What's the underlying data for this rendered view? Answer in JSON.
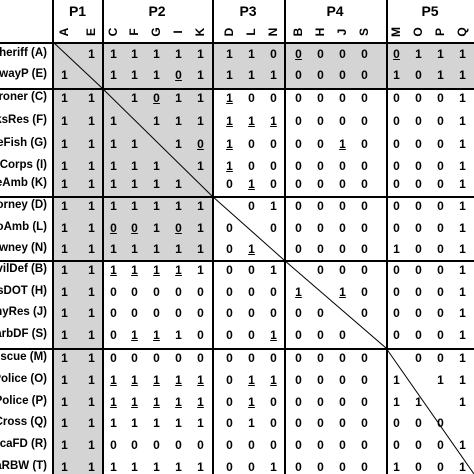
{
  "phases": [
    "P1",
    "P2",
    "P3",
    "P4",
    "P5"
  ],
  "columns": [
    "A",
    "E",
    "C",
    "F",
    "G",
    "I",
    "K",
    "D",
    "L",
    "N",
    "B",
    "H",
    "J",
    "S",
    "M",
    "O",
    "P",
    "Q"
  ],
  "rows": [
    {
      "label": "Sheriff (A)",
      "cells": [
        "",
        "1",
        "1",
        "1",
        "1",
        "1",
        "1",
        "1",
        "1",
        "0",
        "0",
        "0",
        "0",
        "0",
        "0",
        "1",
        "1",
        "1"
      ],
      "underline": [
        0,
        0,
        0,
        0,
        0,
        0,
        0,
        0,
        0,
        0,
        1,
        0,
        0,
        0,
        1,
        0,
        0,
        0
      ]
    },
    {
      "label": "hwayP (E)",
      "cells": [
        "1",
        "",
        "1",
        "1",
        "1",
        "0",
        "1",
        "1",
        "1",
        "1",
        "0",
        "0",
        "0",
        "0",
        "1",
        "0",
        "1",
        "1"
      ],
      "underline": [
        0,
        0,
        0,
        0,
        0,
        1,
        0,
        0,
        0,
        0,
        0,
        0,
        0,
        0,
        0,
        0,
        0,
        0
      ]
    },
    {
      "label": "Coroner (C)",
      "cells": [
        "1",
        "1",
        "",
        "1",
        "0",
        "1",
        "1",
        "1",
        "0",
        "0",
        "0",
        "0",
        "0",
        "0",
        "0",
        "0",
        "0",
        "1"
      ],
      "underline": [
        0,
        0,
        0,
        0,
        1,
        0,
        0,
        1,
        0,
        0,
        0,
        0,
        0,
        0,
        0,
        0,
        0,
        0
      ]
    },
    {
      "label": "ParksRes (F)",
      "cells": [
        "1",
        "1",
        "1",
        "",
        "1",
        "1",
        "1",
        "1",
        "1",
        "1",
        "0",
        "0",
        "0",
        "0",
        "0",
        "0",
        "0",
        "1"
      ],
      "underline": [
        0,
        0,
        0,
        0,
        0,
        0,
        0,
        1,
        1,
        1,
        0,
        0,
        0,
        0,
        0,
        0,
        0,
        0
      ]
    },
    {
      "label": "BlueFish (G)",
      "cells": [
        "1",
        "1",
        "1",
        "1",
        "",
        "1",
        "0",
        "1",
        "0",
        "0",
        "0",
        "0",
        "1",
        "0",
        "0",
        "0",
        "0",
        "1"
      ],
      "underline": [
        0,
        0,
        0,
        0,
        0,
        0,
        1,
        1,
        0,
        0,
        0,
        0,
        1,
        0,
        0,
        0,
        0,
        0
      ]
    },
    {
      "label": "mmyCorps (I)",
      "cells": [
        "1",
        "1",
        "1",
        "1",
        "1",
        "",
        "1",
        "1",
        "0",
        "0",
        "0",
        "0",
        "0",
        "0",
        "0",
        "0",
        "0",
        "1"
      ],
      "underline": [
        0,
        0,
        0,
        0,
        0,
        0,
        0,
        1,
        0,
        0,
        0,
        0,
        0,
        0,
        0,
        0,
        0,
        0
      ]
    },
    {
      "label": "ameAmb (K)",
      "cells": [
        "1",
        "1",
        "1",
        "1",
        "1",
        "1",
        "",
        "0",
        "1",
        "0",
        "0",
        "0",
        "0",
        "0",
        "0",
        "0",
        "0",
        "1"
      ],
      "underline": [
        0,
        0,
        0,
        0,
        0,
        0,
        0,
        0,
        1,
        0,
        0,
        0,
        0,
        0,
        0,
        0,
        0,
        0
      ]
    },
    {
      "label": "Attorney (D)",
      "cells": [
        "1",
        "1",
        "1",
        "1",
        "1",
        "1",
        "1",
        "",
        "0",
        "1",
        "0",
        "0",
        "0",
        "0",
        "0",
        "0",
        "0",
        "1"
      ],
      "underline": [
        0,
        0,
        0,
        0,
        0,
        0,
        0,
        0,
        0,
        0,
        0,
        0,
        0,
        0,
        0,
        0,
        0,
        0
      ]
    },
    {
      "label": "CoAmb (L)",
      "cells": [
        "1",
        "1",
        "0",
        "0",
        "1",
        "0",
        "1",
        "0",
        "",
        "0",
        "0",
        "0",
        "0",
        "0",
        "0",
        "0",
        "0",
        "1"
      ],
      "underline": [
        0,
        0,
        1,
        1,
        0,
        1,
        0,
        0,
        0,
        0,
        0,
        0,
        0,
        0,
        0,
        0,
        0,
        0
      ]
    },
    {
      "label": "Lawney (N)",
      "cells": [
        "1",
        "1",
        "1",
        "1",
        "1",
        "1",
        "1",
        "0",
        "1",
        "",
        "0",
        "0",
        "0",
        "0",
        "1",
        "0",
        "0",
        "1"
      ],
      "underline": [
        0,
        0,
        0,
        0,
        0,
        0,
        0,
        0,
        1,
        0,
        0,
        0,
        0,
        0,
        0,
        0,
        0,
        0
      ]
    },
    {
      "label": "CivilDef (B)",
      "cells": [
        "1",
        "1",
        "1",
        "1",
        "1",
        "1",
        "1",
        "0",
        "0",
        "1",
        "",
        "0",
        "0",
        "0",
        "0",
        "0",
        "0",
        "1"
      ],
      "underline": [
        0,
        0,
        1,
        1,
        1,
        1,
        0,
        0,
        0,
        0,
        0,
        0,
        0,
        0,
        0,
        0,
        0,
        0
      ]
    },
    {
      "label": "TexasDOT (H)",
      "cells": [
        "1",
        "1",
        "0",
        "0",
        "0",
        "0",
        "0",
        "0",
        "0",
        "0",
        "1",
        "",
        "1",
        "0",
        "0",
        "0",
        "0",
        "1"
      ],
      "underline": [
        0,
        0,
        0,
        0,
        0,
        0,
        0,
        0,
        0,
        0,
        1,
        0,
        1,
        0,
        0,
        0,
        0,
        0
      ]
    },
    {
      "label": "ArmyRes (J)",
      "cells": [
        "1",
        "1",
        "0",
        "0",
        "0",
        "0",
        "0",
        "0",
        "0",
        "0",
        "0",
        "0",
        "",
        "0",
        "0",
        "0",
        "0",
        "1"
      ],
      "underline": [
        0,
        0,
        0,
        0,
        0,
        0,
        0,
        0,
        0,
        0,
        0,
        0,
        0,
        0,
        0,
        0,
        0,
        0
      ]
    },
    {
      "label": "CarbDF (S)",
      "cells": [
        "1",
        "1",
        "0",
        "1",
        "1",
        "1",
        "0",
        "0",
        "0",
        "1",
        "0",
        "0",
        "0",
        "",
        "0",
        "0",
        "0",
        "1"
      ],
      "underline": [
        0,
        0,
        0,
        1,
        1,
        0,
        0,
        0,
        0,
        1,
        0,
        0,
        0,
        0,
        0,
        0,
        0,
        0
      ]
    },
    {
      "label": "Rescue (M)",
      "cells": [
        "1",
        "1",
        "0",
        "0",
        "0",
        "0",
        "0",
        "0",
        "0",
        "0",
        "0",
        "0",
        "0",
        "0",
        "",
        "0",
        "0",
        "1"
      ],
      "underline": [
        0,
        0,
        0,
        0,
        0,
        0,
        0,
        0,
        0,
        0,
        0,
        0,
        0,
        0,
        0,
        0,
        0,
        0
      ]
    },
    {
      "label": "Police (O)",
      "cells": [
        "1",
        "1",
        "1",
        "1",
        "1",
        "1",
        "1",
        "0",
        "1",
        "1",
        "0",
        "0",
        "0",
        "0",
        "1",
        "",
        "1",
        "1"
      ],
      "underline": [
        0,
        0,
        1,
        1,
        1,
        1,
        1,
        0,
        1,
        1,
        0,
        0,
        0,
        0,
        0,
        0,
        0,
        0
      ]
    },
    {
      "label": "iPolice (P)",
      "cells": [
        "1",
        "1",
        "1",
        "1",
        "1",
        "1",
        "1",
        "0",
        "1",
        "0",
        "0",
        "0",
        "0",
        "0",
        "1",
        "1",
        "",
        "1"
      ],
      "underline": [
        0,
        0,
        1,
        1,
        1,
        1,
        1,
        0,
        1,
        0,
        0,
        0,
        0,
        0,
        0,
        0,
        0,
        0
      ]
    },
    {
      "label": "edCross (Q)",
      "cells": [
        "1",
        "1",
        "1",
        "1",
        "1",
        "1",
        "1",
        "0",
        "1",
        "0",
        "0",
        "0",
        "0",
        "0",
        "0",
        "0",
        "0",
        ""
      ],
      "underline": [
        0,
        0,
        0,
        0,
        0,
        0,
        0,
        0,
        0,
        0,
        0,
        0,
        0,
        0,
        0,
        0,
        0,
        0
      ]
    },
    {
      "label": "ibicaFD (R)",
      "cells": [
        "1",
        "1",
        "0",
        "0",
        "0",
        "0",
        "0",
        "0",
        "0",
        "0",
        "0",
        "0",
        "0",
        "0",
        "0",
        "0",
        "0",
        "1"
      ],
      "underline": [
        0,
        0,
        0,
        0,
        0,
        0,
        0,
        0,
        0,
        0,
        0,
        0,
        0,
        0,
        0,
        0,
        0,
        0
      ]
    },
    {
      "label": "exaRBW (T)",
      "cells": [
        "1",
        "1",
        "1",
        "1",
        "1",
        "1",
        "1",
        "0",
        "0",
        "1",
        "0",
        "0",
        "0",
        "0",
        "1",
        "0",
        "0",
        "1"
      ],
      "underline": [
        0,
        0,
        0,
        0,
        0,
        0,
        0,
        0,
        0,
        0,
        0,
        0,
        0,
        0,
        0,
        0,
        0,
        0
      ]
    }
  ],
  "colors": {
    "shade": "#d4d4d4",
    "grid": "#000000"
  }
}
